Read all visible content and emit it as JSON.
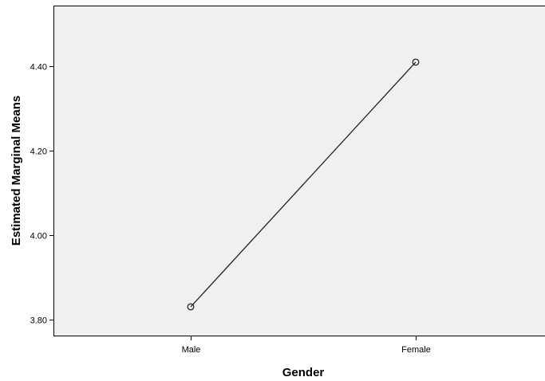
{
  "chart_data": {
    "type": "line",
    "categories": [
      "Male",
      "Female"
    ],
    "series": [
      {
        "values": [
          3.83,
          4.41
        ]
      }
    ],
    "xlabel": "Gender",
    "ylabel": "Estimated Marginal Means",
    "yticks": [
      "3.80",
      "4.00",
      "4.20",
      "4.40"
    ],
    "ylim": [
      3.76,
      4.544
    ],
    "grid": false,
    "colors": {
      "plot_background": "#f0f0f0",
      "line": "#222222",
      "axis": "#000000",
      "page_background": "#ffffff"
    }
  }
}
